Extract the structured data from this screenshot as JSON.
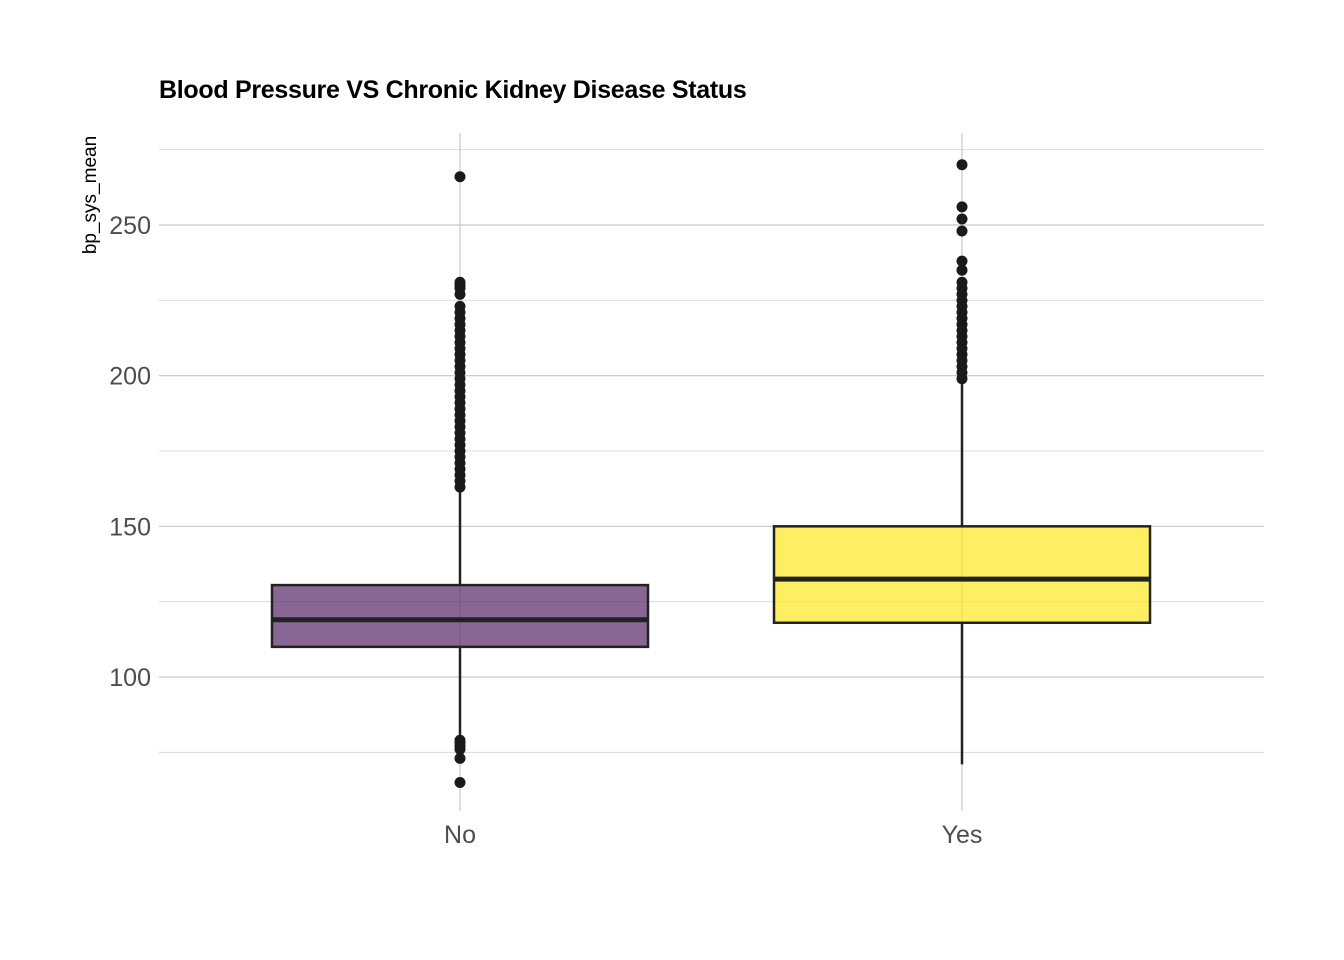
{
  "chart_data": {
    "type": "boxplot",
    "title": "Blood Pressure VS Chronic Kidney Disease Status",
    "xlabel": "",
    "ylabel": "bp_sys_mean",
    "categories": [
      "No",
      "Yes"
    ],
    "ylim": [
      57,
      280
    ],
    "y_ticks": [
      100,
      150,
      200,
      250
    ],
    "grid": true,
    "legend": "none",
    "series": [
      {
        "category": "No",
        "fill": "#5c2d6b",
        "whisker_low": 80,
        "q1": 110,
        "median": 119,
        "q3": 130.5,
        "whisker_high": 162,
        "outliers": [
          266,
          231,
          230,
          229,
          227,
          223,
          221,
          219,
          217,
          215,
          213,
          211,
          209,
          207,
          205,
          203,
          201,
          199,
          197,
          195,
          193,
          191,
          189,
          187,
          185,
          183,
          181,
          179,
          177,
          175,
          173,
          171,
          169,
          167,
          165,
          163,
          79,
          78,
          77,
          76,
          73,
          65
        ]
      },
      {
        "category": "Yes",
        "fill": "#fde725",
        "whisker_low": 71,
        "q1": 118,
        "median": 132.5,
        "q3": 150,
        "whisker_high": 198,
        "outliers": [
          270,
          256,
          252,
          248,
          238,
          235,
          231,
          229,
          227,
          225,
          223,
          221,
          219,
          217,
          215,
          213,
          211,
          209,
          207,
          205,
          203,
          201,
          199
        ]
      }
    ]
  }
}
